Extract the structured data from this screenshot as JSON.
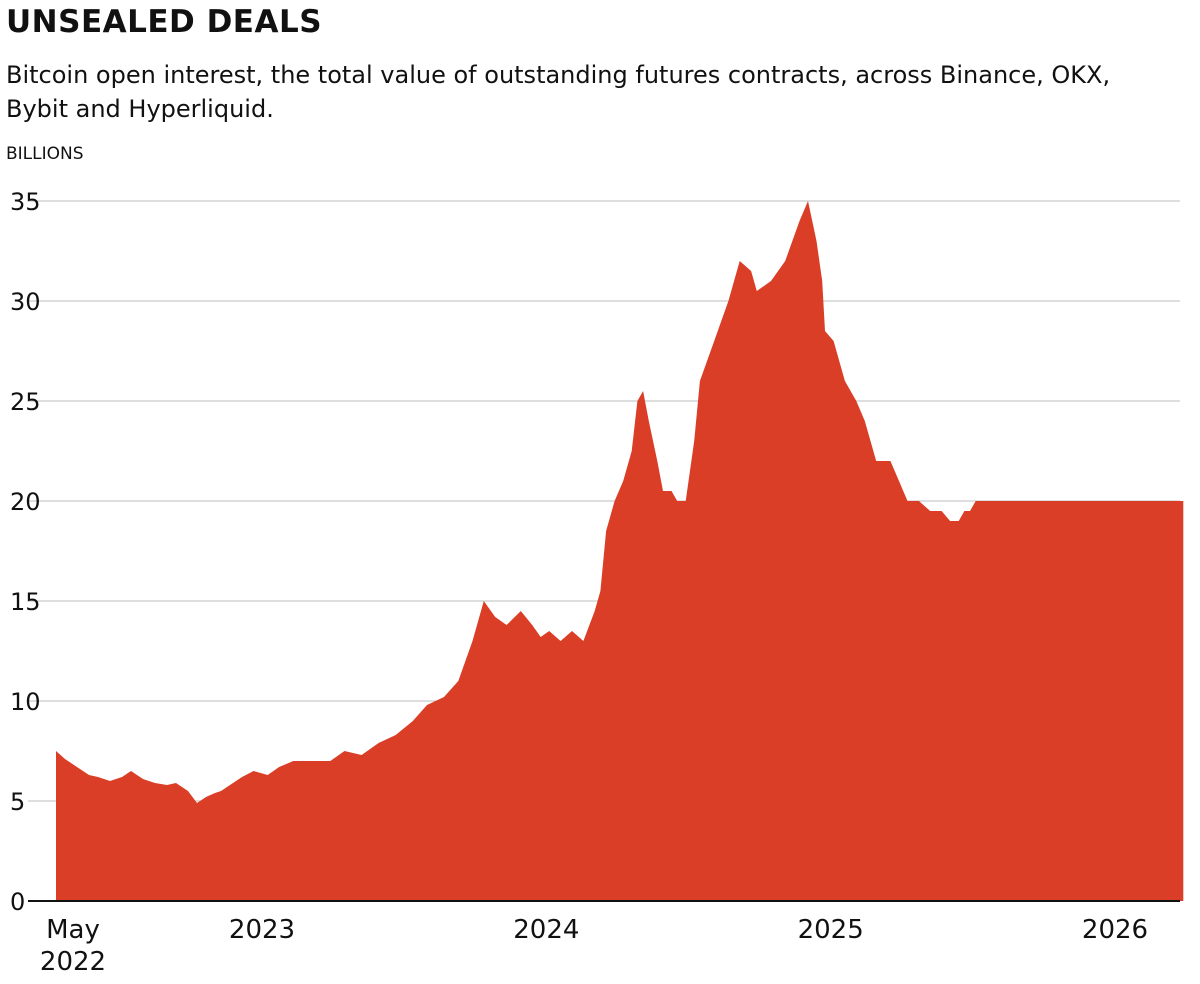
{
  "header": {
    "title": "UNSEALED DEALS",
    "subtitle": "Bitcoin open interest, the total value of outstanding futures contracts, across Binance, OKX, Bybit and Hyperliquid."
  },
  "chart_data": {
    "type": "area",
    "title": "UNSEALED DEALS",
    "subtitle": "Bitcoin open interest, the total value of outstanding futures contracts, across Binance, OKX, Bybit and Hyperliquid.",
    "ylabel": "BILLIONS",
    "xlabel": "",
    "ylim": [
      0,
      35
    ],
    "yticks": [
      0,
      5,
      10,
      15,
      20,
      25,
      30,
      35
    ],
    "grid": true,
    "x_range": [
      2022.37,
      2026.3
    ],
    "xticks": [
      {
        "x": 2022.37,
        "line1": "May",
        "line2": "2022"
      },
      {
        "x": 2023.0,
        "line1": "2023"
      },
      {
        "x": 2024.0,
        "line1": "2024"
      },
      {
        "x": 2025.0,
        "line1": "2025"
      },
      {
        "x": 2026.0,
        "line1": "2026"
      }
    ],
    "color": "#db3e27",
    "series": [
      {
        "name": "Bitcoin open interest",
        "x": [
          2022.37,
          2022.4,
          2022.44,
          2022.48,
          2022.51,
          2022.55,
          2022.59,
          2022.62,
          2022.66,
          2022.7,
          2022.74,
          2022.77,
          2022.81,
          2022.84,
          2022.87,
          2022.9,
          2022.92,
          2022.95,
          2022.99,
          2023.03,
          2023.08,
          2023.12,
          2023.17,
          2023.22,
          2023.26,
          2023.3,
          2023.35,
          2023.41,
          2023.47,
          2023.53,
          2023.59,
          2023.64,
          2023.7,
          2023.75,
          2023.8,
          2023.84,
          2023.88,
          2023.92,
          2023.97,
          2024.01,
          2024.04,
          2024.07,
          2024.11,
          2024.15,
          2024.19,
          2024.23,
          2024.25,
          2024.27,
          2024.3,
          2024.33,
          2024.36,
          2024.38,
          2024.4,
          2024.42,
          2024.45,
          2024.47,
          2024.5,
          2024.52,
          2024.55,
          2024.58,
          2024.6,
          2024.65,
          2024.7,
          2024.74,
          2024.78,
          2024.8,
          2024.85,
          2024.9,
          2024.95,
          2024.98,
          2025.01,
          2025.03,
          2025.04,
          2025.07,
          2025.11,
          2025.15,
          2025.18,
          2025.2,
          2025.22,
          2025.27,
          2025.3,
          2025.33,
          2025.37,
          2025.41,
          2025.45,
          2025.48,
          2025.51,
          2025.53,
          2025.55,
          2025.57,
          2025.59,
          2025.61,
          2025.63,
          2025.65,
          2025.69,
          2025.72,
          2025.74,
          2025.78,
          2025.81,
          2025.85,
          2025.89,
          2025.93,
          2025.95,
          2025.98,
          2026.0,
          2026.02,
          2026.04,
          2026.06,
          2026.08,
          2026.1,
          2026.12,
          2026.14,
          2026.16,
          2026.18,
          2026.2,
          2026.22,
          2026.24,
          2026.26,
          2026.28,
          2026.3
        ],
        "values": [
          7.5,
          7.1,
          6.7,
          6.3,
          6.2,
          6.0,
          6.2,
          6.5,
          6.1,
          5.9,
          5.8,
          5.9,
          5.5,
          4.9,
          5.2,
          5.4,
          5.5,
          5.8,
          6.2,
          6.5,
          6.3,
          6.7,
          7.0,
          7.0,
          7.0,
          7.0,
          7.5,
          7.3,
          7.9,
          8.3,
          9.0,
          9.8,
          10.2,
          11.0,
          13.0,
          15.0,
          14.2,
          13.8,
          14.5,
          13.8,
          13.2,
          13.5,
          13.0,
          13.5,
          13.0,
          14.5,
          15.5,
          18.5,
          20.0,
          21.0,
          22.5,
          25.0,
          25.5,
          24.0,
          22.0,
          20.5,
          20.5,
          20.0,
          20.0,
          23.0,
          26.0,
          28.0,
          30.0,
          32.0,
          31.5,
          30.5,
          31.0,
          32.0,
          34.0,
          35.0,
          33.0,
          31.0,
          28.5,
          28.0,
          26.0,
          25.0,
          24.0,
          23.0,
          22.0,
          22.0,
          21.0,
          20.0,
          20.0,
          19.5,
          19.5,
          19.0,
          19.0,
          19.5,
          19.5,
          20.0,
          20.0,
          20.0,
          20.0,
          20.0,
          20.0,
          20.0,
          20.0,
          20.0,
          20.0,
          20.0,
          20.0,
          20.0,
          20.0,
          20.0,
          20.0,
          20.0,
          20.0,
          20.0,
          20.0,
          20.0,
          20.0,
          20.0,
          20.0,
          20.0,
          20.0,
          20.0,
          20.0,
          20.0,
          20.0,
          20.0
        ]
      }
    ]
  }
}
